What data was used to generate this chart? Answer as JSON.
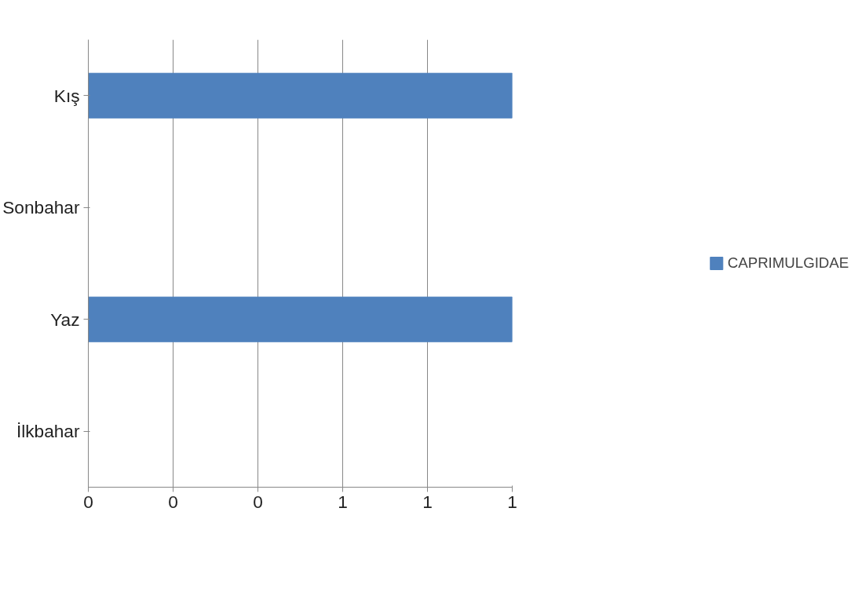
{
  "chart_data": {
    "type": "bar",
    "orientation": "horizontal",
    "categories": [
      "Kış",
      "Sonbahar",
      "Yaz",
      "İlkbahar"
    ],
    "series": [
      {
        "name": "CAPRIMULGIDAE",
        "color": "#4f81bd",
        "values": [
          1,
          0,
          1,
          0
        ]
      }
    ],
    "xlim": [
      0,
      1
    ],
    "xticks": [
      0,
      {
        "value": 0.2,
        "label": "0"
      },
      {
        "value": 0.4,
        "label": "0"
      },
      {
        "value": 0.6,
        "label": "1"
      },
      {
        "value": 0.8,
        "label": "1"
      },
      1
    ],
    "grid": "x",
    "legend": "right"
  }
}
